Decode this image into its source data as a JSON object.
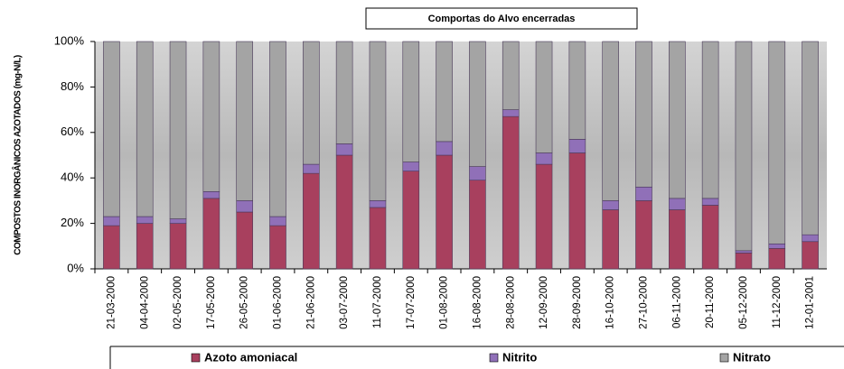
{
  "chart_data": {
    "type": "stacked_bar_percent",
    "title": "Comportas do Alvo encerradas",
    "y_label": "COMPOSTOS INORGÂNICOS AZOTADOS (mg-N/L)",
    "categories": [
      "21-03-2000",
      "04-04-2000",
      "02-05-2000",
      "17-05-2000",
      "26-05-2000",
      "01-06-2000",
      "21-06-2000",
      "03-07-2000",
      "11-07-2000",
      "17-07-2000",
      "01-08-2000",
      "16-08-2000",
      "28-08-2000",
      "12-09-2000",
      "28-09-2000",
      "16-10-2000",
      "27-10-2000",
      "06-11-2000",
      "20-11-2000",
      "05-12-2000",
      "11-12-2000",
      "12-01-2001"
    ],
    "series": [
      {
        "name": "Azoto amoniacal",
        "color": "#a8405e",
        "values": [
          19,
          20,
          20,
          31,
          25,
          19,
          42,
          50,
          27,
          43,
          50,
          39,
          67,
          46,
          51,
          26,
          30,
          26,
          28,
          7,
          9,
          12
        ]
      },
      {
        "name": "Nitrito",
        "color": "#9070b8",
        "values": [
          4,
          3,
          2,
          3,
          5,
          4,
          4,
          5,
          3,
          4,
          6,
          6,
          3,
          5,
          6,
          4,
          6,
          5,
          3,
          1,
          2,
          3
        ]
      },
      {
        "name": "Nitrato",
        "color": "#a4a4a4",
        "values": [
          77,
          77,
          78,
          66,
          70,
          77,
          54,
          45,
          70,
          53,
          44,
          55,
          30,
          49,
          43,
          70,
          64,
          69,
          69,
          92,
          89,
          85
        ]
      }
    ],
    "ylim": [
      0,
      100
    ],
    "yticks": [
      {
        "value": 0,
        "label": "0%"
      },
      {
        "value": 20,
        "label": "20%"
      },
      {
        "value": 40,
        "label": "40%"
      },
      {
        "value": 60,
        "label": "60%"
      },
      {
        "value": 80,
        "label": "80%"
      },
      {
        "value": 100,
        "label": "100%"
      }
    ]
  }
}
